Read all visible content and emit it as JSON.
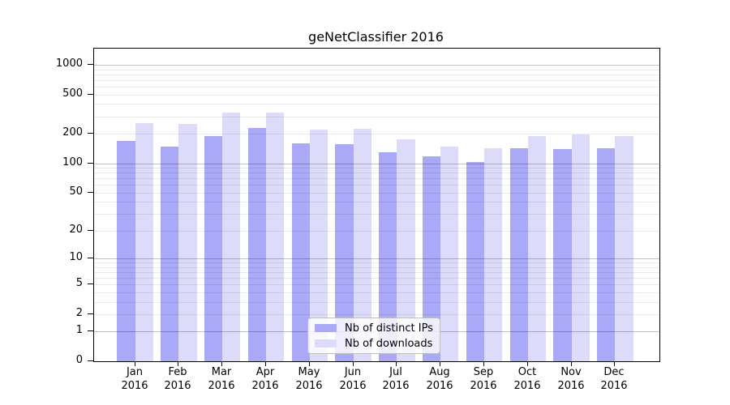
{
  "chart_data": {
    "type": "bar",
    "title": "geNetClassifier 2016",
    "x": {
      "months": [
        "Jan",
        "Feb",
        "Mar",
        "Apr",
        "May",
        "Jun",
        "Jul",
        "Aug",
        "Sep",
        "Oct",
        "Nov",
        "Dec"
      ],
      "year": "2016"
    },
    "series": [
      {
        "name": "Nb of distinct IPs",
        "color": "#a9a9f8",
        "values": [
          170,
          148,
          188,
          228,
          161,
          156,
          130,
          118,
          104,
          143,
          140,
          143
        ]
      },
      {
        "name": "Nb of downloads",
        "color": "#dcdcfa",
        "values": [
          258,
          252,
          330,
          328,
          219,
          226,
          175,
          147,
          143,
          191,
          195,
          190
        ]
      }
    ],
    "yaxis": {
      "scale": "log1p",
      "tick_labels": [
        1000,
        500,
        200,
        100,
        50,
        20,
        10,
        5,
        2,
        1,
        0
      ],
      "gridlines_major": [
        1,
        10,
        100,
        1000
      ],
      "gridlines_minor": [
        2,
        3,
        4,
        5,
        6,
        7,
        8,
        9,
        20,
        30,
        40,
        50,
        60,
        70,
        80,
        90,
        200,
        300,
        400,
        500,
        600,
        700,
        800,
        900
      ],
      "ylim": [
        0,
        1460
      ]
    },
    "legend": {
      "position": "lower-center-inside"
    },
    "grid": true
  },
  "colors": {
    "background": "#ffffff",
    "frame": "#000000",
    "series_ips": "#a9a9f8",
    "series_downloads": "#dcdcfa",
    "legend_border": "#bfbfbf"
  }
}
